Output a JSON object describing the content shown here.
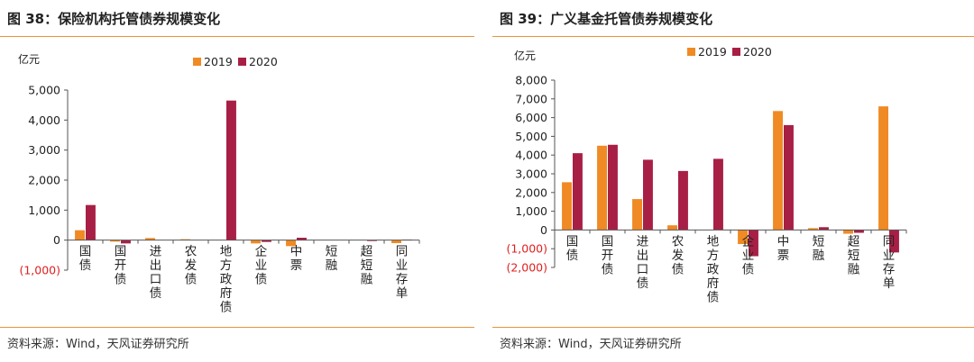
{
  "panels": [
    {
      "title": "图 38：保险机构托管债券规模变化",
      "source": "资料来源：Wind，天风证券研究所",
      "colors": {
        "orange": "#f08a24",
        "crimson": "#a81f45",
        "neg_label": "#e02020"
      },
      "chart_data": {
        "type": "bar",
        "title": "图 38：保险机构托管债券规模变化",
        "unit_label": "亿元",
        "categories": [
          "国债",
          "国开债",
          "进出口债",
          "农发债",
          "地方政府债",
          "企业债",
          "中票",
          "短融",
          "超短融",
          "同业存单"
        ],
        "series": [
          {
            "name": "2019",
            "values": [
              330,
              -50,
              70,
              30,
              0,
              -110,
              -200,
              0,
              0,
              -100
            ]
          },
          {
            "name": "2020",
            "values": [
              1170,
              -110,
              0,
              0,
              4650,
              -60,
              80,
              0,
              -30,
              20
            ]
          }
        ],
        "yticks": [
          "(1,000)",
          "0",
          "1,000",
          "2,000",
          "3,000",
          "4,000",
          "5,000"
        ],
        "ylim": [
          -1000,
          5000
        ],
        "legend": "top"
      }
    },
    {
      "title": "图 39：广义基金托管债券规模变化",
      "source": "资料来源：Wind，天风证券研究所",
      "colors": {
        "orange": "#f08a24",
        "crimson": "#a81f45",
        "neg_label": "#e02020"
      },
      "chart_data": {
        "type": "bar",
        "title": "图 39：广义基金托管债券规模变化",
        "unit_label": "亿元",
        "categories": [
          "国债",
          "国开债",
          "进出口债",
          "农发债",
          "地方政府债",
          "企业债",
          "中票",
          "短融",
          "超短融",
          "同业存单"
        ],
        "series": [
          {
            "name": "2019",
            "values": [
              2550,
              4500,
              1650,
              250,
              0,
              -750,
              6350,
              100,
              -200,
              6600
            ]
          },
          {
            "name": "2020",
            "values": [
              4100,
              4550,
              3750,
              3150,
              3800,
              -1400,
              5600,
              150,
              -150,
              -1200
            ]
          }
        ],
        "yticks": [
          "(2,000)",
          "(1,000)",
          "0",
          "1,000",
          "2,000",
          "3,000",
          "4,000",
          "5,000",
          "6,000",
          "7,000",
          "8,000"
        ],
        "ylim": [
          -2000,
          8000
        ],
        "legend": "top"
      }
    }
  ]
}
